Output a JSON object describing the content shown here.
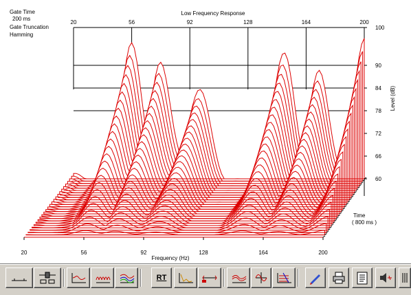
{
  "info": {
    "gate_time_label": "Gate Time",
    "gate_time_value": "200 ms",
    "truncation_label": "Gate Truncation",
    "truncation_value": "Hamming"
  },
  "chart_data": {
    "type": "waterfall",
    "title": "Low Frequency Response",
    "xlabel": "Frequency (Hz)",
    "ylabel": "Level (dB)",
    "time_label": "Time",
    "time_value": "( 800 ms )",
    "x_ticks": [
      "20",
      "56",
      "92",
      "128",
      "164",
      "200"
    ],
    "y_ticks": [
      "100",
      "90",
      "84",
      "78",
      "72",
      "66",
      "60"
    ],
    "xlim": [
      20,
      200
    ],
    "ylim": [
      60,
      100
    ],
    "slice_count": 26,
    "front_slice_peaks_db": [
      {
        "freq": 56,
        "level": 96
      },
      {
        "freq": 74,
        "level": 90
      },
      {
        "freq": 98,
        "level": 84
      },
      {
        "freq": 150,
        "level": 93
      },
      {
        "freq": 172,
        "level": 88
      },
      {
        "freq": 200,
        "level": 98
      }
    ],
    "line_color": "#dd0000"
  },
  "toolbar": {
    "rt_label": "RT",
    "buttons": [
      "impulse-view-button",
      "gate-settings-button",
      "frequency-response-button",
      "waterfall-button",
      "spectrogram-button",
      "rt-button",
      "decay-button",
      "marker-button",
      "cumulative-spectra-button",
      "phase-button",
      "schroeder-button",
      "color-button",
      "print-button",
      "report-button",
      "speaker-button",
      "more-button"
    ]
  }
}
